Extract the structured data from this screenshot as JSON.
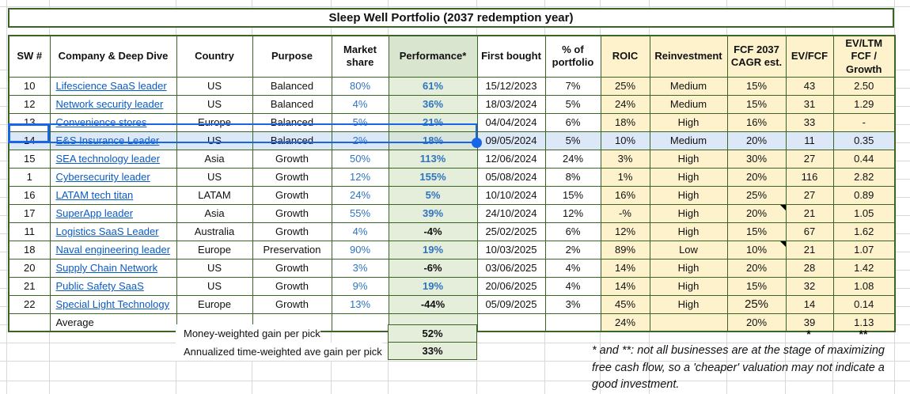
{
  "title": "Sleep Well Portfolio (2037 redemption year)",
  "table": {
    "columns": [
      {
        "label": "SW #"
      },
      {
        "label": "Company & Deep Dive"
      },
      {
        "label": "Country"
      },
      {
        "label": "Purpose"
      },
      {
        "label": "Market share"
      },
      {
        "label": "Performance*"
      },
      {
        "label": "First bought"
      },
      {
        "label": "% of portfolio"
      },
      {
        "label": "ROIC"
      },
      {
        "label": "Reinvestment"
      },
      {
        "label": "FCF 2037 CAGR est."
      },
      {
        "label": "EV/FCF"
      },
      {
        "label": "EV/LTM FCF / Growth"
      }
    ],
    "rows": [
      {
        "sw": "10",
        "company": "Lifescience SaaS leader",
        "country": "US",
        "purpose": "Balanced",
        "market_share": "80%",
        "performance": "61%",
        "first_bought": "15/12/2023",
        "pct_portfolio": "7%",
        "roic": "25%",
        "reinvestment": "Medium",
        "fcf_cagr": "15%",
        "ev_fcf": "43",
        "ev_ltm": "2.50",
        "selected": false,
        "fcf_note": false,
        "fcf_large": false
      },
      {
        "sw": "12",
        "company": "Network security leader",
        "country": "US",
        "purpose": "Balanced",
        "market_share": "4%",
        "performance": "36%",
        "first_bought": "18/03/2024",
        "pct_portfolio": "5%",
        "roic": "24%",
        "reinvestment": "Medium",
        "fcf_cagr": "15%",
        "ev_fcf": "31",
        "ev_ltm": "1.29",
        "selected": false,
        "fcf_note": false,
        "fcf_large": false
      },
      {
        "sw": "13",
        "company": "Convenience stores",
        "country": "Europe",
        "purpose": "Balanced",
        "market_share": "5%",
        "performance": "21%",
        "first_bought": "04/04/2024",
        "pct_portfolio": "6%",
        "roic": "18%",
        "reinvestment": "High",
        "fcf_cagr": "16%",
        "ev_fcf": "33",
        "ev_ltm": "-",
        "selected": false,
        "fcf_note": false,
        "fcf_large": false
      },
      {
        "sw": "14",
        "company": "E&S Insurance Leader",
        "country": "US",
        "purpose": "Balanced",
        "market_share": "2%",
        "performance": "18%",
        "first_bought": "09/05/2024",
        "pct_portfolio": "5%",
        "roic": "10%",
        "reinvestment": "Medium",
        "fcf_cagr": "20%",
        "ev_fcf": "11",
        "ev_ltm": "0.35",
        "selected": true,
        "fcf_note": false,
        "fcf_large": false
      },
      {
        "sw": "15",
        "company": "SEA technology leader",
        "country": "Asia",
        "purpose": "Growth",
        "market_share": "50%",
        "performance": "113%",
        "first_bought": "12/06/2024",
        "pct_portfolio": "24%",
        "roic": "3%",
        "reinvestment": "High",
        "fcf_cagr": "30%",
        "ev_fcf": "27",
        "ev_ltm": "0.44",
        "selected": false,
        "fcf_note": false,
        "fcf_large": false
      },
      {
        "sw": "1",
        "company": "Cybersecurity leader",
        "country": "US",
        "purpose": "Growth",
        "market_share": "12%",
        "performance": "155%",
        "first_bought": "05/08/2024",
        "pct_portfolio": "8%",
        "roic": "1%",
        "reinvestment": "High",
        "fcf_cagr": "20%",
        "ev_fcf": "116",
        "ev_ltm": "2.82",
        "selected": false,
        "fcf_note": false,
        "fcf_large": false
      },
      {
        "sw": "16",
        "company": "LATAM tech titan",
        "country": "LATAM",
        "purpose": "Growth",
        "market_share": "24%",
        "performance": "5%",
        "first_bought": "10/10/2024",
        "pct_portfolio": "15%",
        "roic": "16%",
        "reinvestment": "High",
        "fcf_cagr": "25%",
        "ev_fcf": "27",
        "ev_ltm": "0.89",
        "selected": false,
        "fcf_note": false,
        "fcf_large": false
      },
      {
        "sw": "17",
        "company": "SuperApp leader",
        "country": "Asia",
        "purpose": "Growth",
        "market_share": "55%",
        "performance": "39%",
        "first_bought": "24/10/2024",
        "pct_portfolio": "12%",
        "roic": "-%",
        "reinvestment": "High",
        "fcf_cagr": "20%",
        "ev_fcf": "21",
        "ev_ltm": "1.05",
        "selected": false,
        "fcf_note": true,
        "fcf_large": false
      },
      {
        "sw": "11",
        "company": "Logistics SaaS Leader",
        "country": "Australia",
        "purpose": "Growth",
        "market_share": "4%",
        "performance": "-4%",
        "first_bought": "25/02/2025",
        "pct_portfolio": "6%",
        "roic": "12%",
        "reinvestment": "High",
        "fcf_cagr": "15%",
        "ev_fcf": "67",
        "ev_ltm": "1.62",
        "selected": false,
        "fcf_note": false,
        "fcf_large": false
      },
      {
        "sw": "18",
        "company": "Naval engineering leader",
        "country": "Europe",
        "purpose": "Preservation",
        "market_share": "90%",
        "performance": "19%",
        "first_bought": "10/03/2025",
        "pct_portfolio": "2%",
        "roic": "89%",
        "reinvestment": "Low",
        "fcf_cagr": "10%",
        "ev_fcf": "21",
        "ev_ltm": "1.07",
        "selected": false,
        "fcf_note": true,
        "fcf_large": false
      },
      {
        "sw": "20",
        "company": "Supply Chain Network",
        "country": "US",
        "purpose": "Growth",
        "market_share": "3%",
        "performance": "-6%",
        "first_bought": "03/06/2025",
        "pct_portfolio": "4%",
        "roic": "14%",
        "reinvestment": "High",
        "fcf_cagr": "20%",
        "ev_fcf": "28",
        "ev_ltm": "1.42",
        "selected": false,
        "fcf_note": false,
        "fcf_large": false
      },
      {
        "sw": "21",
        "company": "Public Safety SaaS",
        "country": "US",
        "purpose": "Growth",
        "market_share": "9%",
        "performance": "19%",
        "first_bought": "20/06/2025",
        "pct_portfolio": "4%",
        "roic": "14%",
        "reinvestment": "High",
        "fcf_cagr": "15%",
        "ev_fcf": "32",
        "ev_ltm": "1.08",
        "selected": false,
        "fcf_note": false,
        "fcf_large": false
      },
      {
        "sw": "22",
        "company": "Special Light Technology",
        "country": "Europe",
        "purpose": "Growth",
        "market_share": "13%",
        "performance": "-44%",
        "first_bought": "05/09/2025",
        "pct_portfolio": "3%",
        "roic": "45%",
        "reinvestment": "High",
        "fcf_cagr": "25%",
        "ev_fcf": "14",
        "ev_ltm": "0.14",
        "selected": false,
        "fcf_note": false,
        "fcf_large": true
      }
    ],
    "average": {
      "company": "Average",
      "roic": "24%",
      "fcf_cagr": "20%",
      "ev_fcf": "39",
      "ev_ltm": "1.13"
    }
  },
  "footer": {
    "money_weighted_label": "Money-weighted gain per pick",
    "money_weighted_value": "52%",
    "time_weighted_label": "Annualized time-weighted ave gain per pick",
    "time_weighted_value": "33%",
    "star": "*",
    "double_star": "**",
    "footnote": "* and **: not all businesses are at the stage of maximizing free cash flow, so a 'cheaper' valuation may not indicate a good investment."
  },
  "colors": {
    "border_green": "#3a6524",
    "header_green_bg": "#d9e5cf",
    "performance_col_bg": "#e4eedb",
    "yellow_col_bg": "#fdf2cc",
    "hyperlink_blue": "#0a5bc4",
    "value_blue": "#2e74c0",
    "selection_blue": "#1766e8",
    "selected_row_bg": "#dce8f7"
  }
}
